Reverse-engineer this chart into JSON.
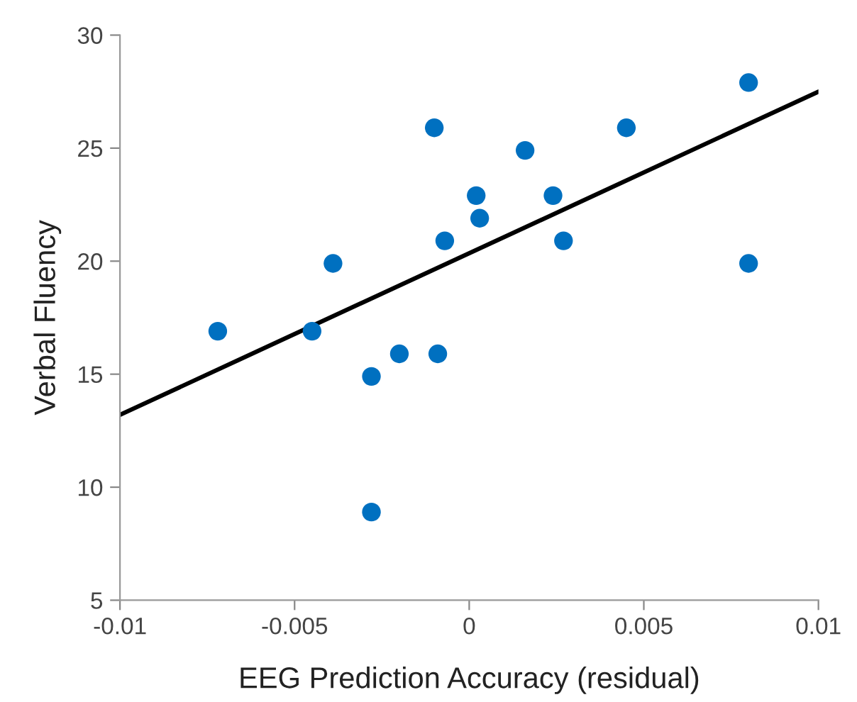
{
  "chart_data": {
    "type": "scatter",
    "xlabel": "EEG Prediction Accuracy (residual)",
    "ylabel": "Verbal Fluency",
    "xlim": [
      -0.01,
      0.01
    ],
    "xticks": [
      -0.01,
      -0.005,
      0,
      0.005,
      0.01
    ],
    "ylim": [
      5,
      30
    ],
    "yticks": [
      5,
      10,
      15,
      20,
      25,
      30
    ],
    "grid": false,
    "marker": "circle",
    "series": [
      {
        "color": "#0070c0",
        "x": [
          -0.0072,
          -0.0045,
          -0.0039,
          -0.0028,
          -0.0028,
          -0.002,
          -0.0009,
          -0.001,
          -0.0007,
          0.0002,
          0.0003,
          0.0016,
          0.0024,
          0.0027,
          0.0045,
          0.008,
          0.008
        ],
        "values": [
          16.9,
          16.9,
          19.9,
          14.9,
          8.9,
          15.9,
          15.9,
          25.9,
          20.9,
          22.9,
          21.9,
          24.9,
          22.9,
          20.9,
          25.9,
          27.9,
          19.9
        ]
      },
      {
        "type": "line",
        "color": "#000000",
        "x": [
          -0.01,
          0.01
        ],
        "values": [
          13.2,
          27.5
        ],
        "marker": "none"
      }
    ]
  }
}
